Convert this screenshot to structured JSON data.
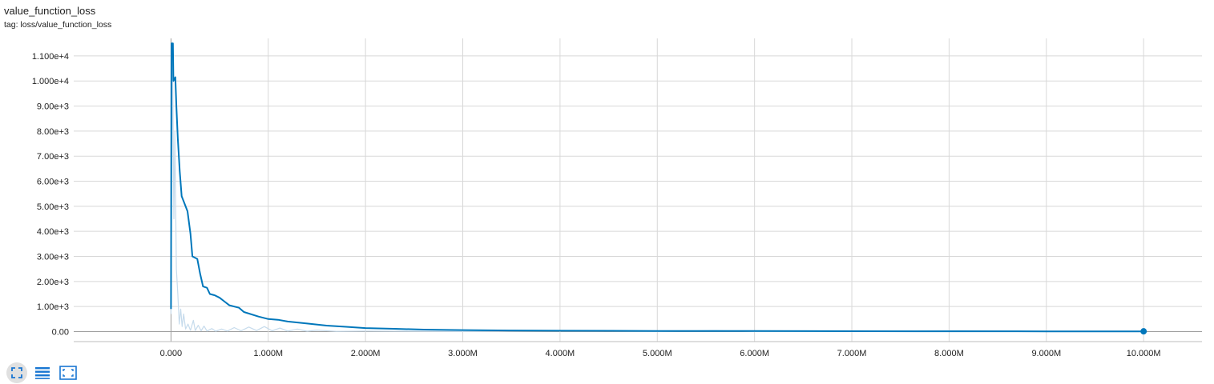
{
  "header": {
    "title": "value_function_loss",
    "tag": "tag: loss/value_function_loss"
  },
  "toolbar": {
    "buttons": [
      {
        "icon": "fit-domain-icon",
        "active": true
      },
      {
        "icon": "log-scale-lines-icon",
        "active": false
      },
      {
        "icon": "expand-chart-icon",
        "active": false
      }
    ]
  },
  "colors": {
    "smoothed": "#0077bb",
    "raw": "#c6dbec",
    "grid": "#d8d8d8",
    "toolbar_icon": "#1976d2"
  },
  "chart_data": {
    "type": "line",
    "xlabel": "",
    "ylabel": "",
    "xlim": [
      -1000000,
      10600000
    ],
    "ylim": [
      -400,
      11700
    ],
    "x_ticks": [
      {
        "value": 0,
        "label": "0.000"
      },
      {
        "value": 1000000,
        "label": "1.000M"
      },
      {
        "value": 2000000,
        "label": "2.000M"
      },
      {
        "value": 3000000,
        "label": "3.000M"
      },
      {
        "value": 4000000,
        "label": "4.000M"
      },
      {
        "value": 5000000,
        "label": "5.000M"
      },
      {
        "value": 6000000,
        "label": "6.000M"
      },
      {
        "value": 7000000,
        "label": "7.000M"
      },
      {
        "value": 8000000,
        "label": "8.000M"
      },
      {
        "value": 9000000,
        "label": "9.000M"
      },
      {
        "value": 10000000,
        "label": "10.000M"
      }
    ],
    "y_ticks": [
      {
        "value": 0,
        "label": "0.00"
      },
      {
        "value": 1000,
        "label": "1.00e+3"
      },
      {
        "value": 2000,
        "label": "2.00e+3"
      },
      {
        "value": 3000,
        "label": "3.00e+3"
      },
      {
        "value": 4000,
        "label": "4.00e+3"
      },
      {
        "value": 5000,
        "label": "5.00e+3"
      },
      {
        "value": 6000,
        "label": "6.00e+3"
      },
      {
        "value": 7000,
        "label": "7.00e+3"
      },
      {
        "value": 8000,
        "label": "8.00e+3"
      },
      {
        "value": 9000,
        "label": "9.00e+3"
      },
      {
        "value": 10000,
        "label": "1.000e+4"
      },
      {
        "value": 11000,
        "label": "1.100e+4"
      }
    ],
    "grid": true,
    "series": [
      {
        "style": "smoothed",
        "points": [
          [
            0,
            900
          ],
          [
            5000,
            11500
          ],
          [
            20000,
            11500
          ],
          [
            25000,
            10000
          ],
          [
            45000,
            10150
          ],
          [
            55000,
            9000
          ],
          [
            70000,
            7700
          ],
          [
            90000,
            6400
          ],
          [
            110000,
            5400
          ],
          [
            140000,
            5100
          ],
          [
            170000,
            4800
          ],
          [
            200000,
            3900
          ],
          [
            220000,
            3000
          ],
          [
            270000,
            2900
          ],
          [
            300000,
            2300
          ],
          [
            330000,
            1800
          ],
          [
            370000,
            1750
          ],
          [
            400000,
            1500
          ],
          [
            450000,
            1450
          ],
          [
            500000,
            1350
          ],
          [
            550000,
            1200
          ],
          [
            600000,
            1050
          ],
          [
            700000,
            950
          ],
          [
            750000,
            780
          ],
          [
            900000,
            600
          ],
          [
            1000000,
            500
          ],
          [
            1100000,
            470
          ],
          [
            1200000,
            400
          ],
          [
            1400000,
            320
          ],
          [
            1600000,
            240
          ],
          [
            1800000,
            190
          ],
          [
            2000000,
            140
          ],
          [
            2300000,
            110
          ],
          [
            2600000,
            80
          ],
          [
            3000000,
            60
          ],
          [
            3500000,
            45
          ],
          [
            4000000,
            35
          ],
          [
            5000000,
            25
          ],
          [
            6000000,
            20
          ],
          [
            7000000,
            15
          ],
          [
            8000000,
            12
          ],
          [
            9000000,
            10
          ],
          [
            10000000,
            10
          ]
        ]
      },
      {
        "style": "raw",
        "points": [
          [
            0,
            700
          ],
          [
            15000,
            11200
          ],
          [
            30000,
            4500
          ],
          [
            40000,
            8000
          ],
          [
            55000,
            2500
          ],
          [
            70000,
            1500
          ],
          [
            85000,
            300
          ],
          [
            100000,
            900
          ],
          [
            115000,
            200
          ],
          [
            130000,
            700
          ],
          [
            150000,
            100
          ],
          [
            175000,
            300
          ],
          [
            200000,
            50
          ],
          [
            230000,
            450
          ],
          [
            250000,
            40
          ],
          [
            280000,
            250
          ],
          [
            310000,
            30
          ],
          [
            340000,
            220
          ],
          [
            370000,
            20
          ],
          [
            420000,
            120
          ],
          [
            460000,
            15
          ],
          [
            520000,
            100
          ],
          [
            580000,
            20
          ],
          [
            650000,
            160
          ],
          [
            720000,
            30
          ],
          [
            800000,
            180
          ],
          [
            880000,
            40
          ],
          [
            960000,
            200
          ],
          [
            1040000,
            30
          ],
          [
            1120000,
            140
          ],
          [
            1200000,
            20
          ],
          [
            1300000,
            100
          ],
          [
            1400000,
            15
          ],
          [
            1500000,
            60
          ],
          [
            1700000,
            10
          ],
          [
            2000000,
            20
          ],
          [
            3000000,
            5
          ],
          [
            4000000,
            30
          ],
          [
            5000000,
            5
          ],
          [
            5600000,
            40
          ],
          [
            6000000,
            5
          ],
          [
            7000000,
            10
          ],
          [
            8100000,
            40
          ],
          [
            9000000,
            5
          ],
          [
            10000000,
            10
          ]
        ]
      }
    ],
    "last_point": [
      10000000,
      10
    ]
  }
}
